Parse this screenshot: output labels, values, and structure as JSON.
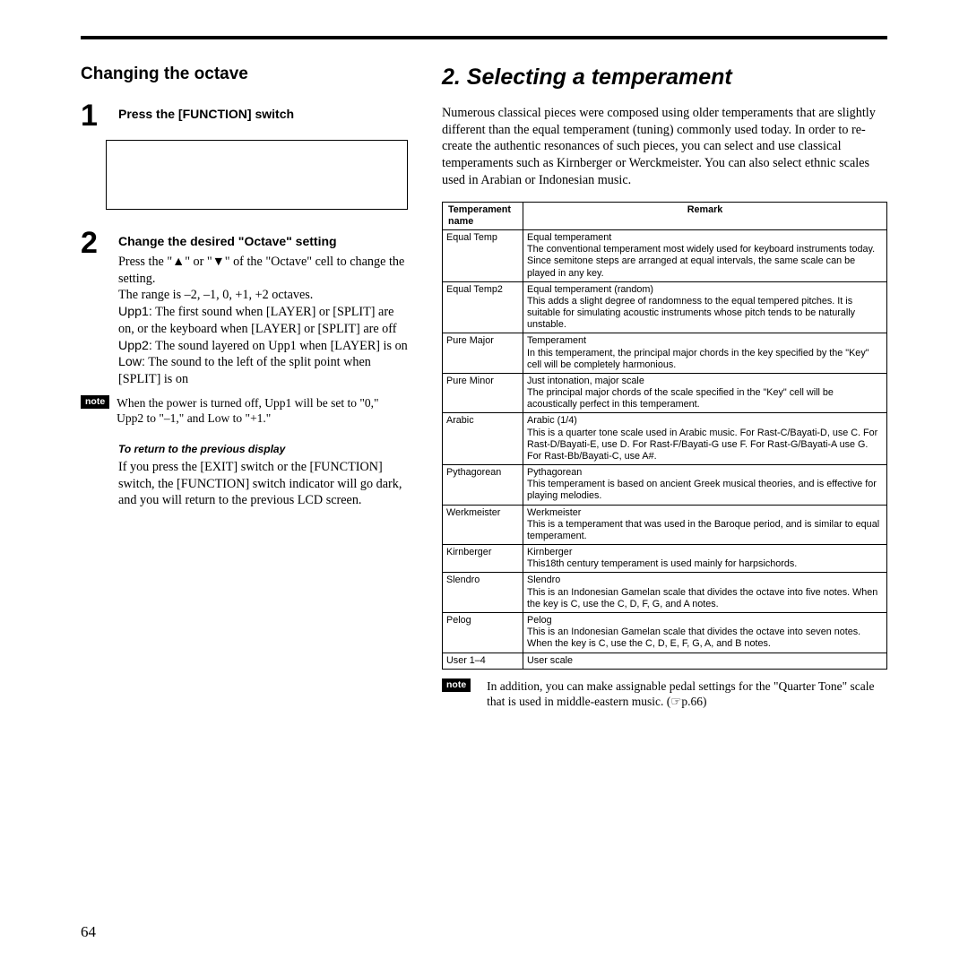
{
  "pageNumber": "64",
  "left": {
    "heading": "Changing the octave",
    "step1": {
      "num": "1",
      "title": "Press the [FUNCTION] switch"
    },
    "step2": {
      "num": "2",
      "title": "Change the desired \"Octave\" setting",
      "body1": "Press the \"▲\" or \"▼\" of the \"Octave\" cell to change the setting.",
      "body2": "The range is –2, –1, 0, +1, +2 octaves.",
      "body3a": "Upp1:",
      "body3b": " The first sound when [LAYER] or [SPLIT] are on, or the keyboard when [LAYER] or [SPLIT] are off",
      "body4a": "Upp2:",
      "body4b": " The sound layered on Upp1 when [LAYER] is on",
      "body5a": "Low:",
      "body5b": " The sound to the left of the split point when [SPLIT] is on"
    },
    "note1": "When the power is turned off, Upp1 will be set to \"0,\" Upp2 to \"–1,\" and Low to \"+1.\"",
    "returnHeading": "To return to the previous display",
    "returnBody": "If you press the [EXIT] switch or the [FUNCTION] switch, the [FUNCTION] switch indicator will go dark, and you will return to the previous LCD screen."
  },
  "right": {
    "heading": "2. Selecting a temperament",
    "intro": "Numerous classical pieces were composed using older temperaments that are slightly different than the equal temperament (tuning) commonly used today. In order to re-create the authentic resonances of such pieces, you can select and use classical temperaments such as Kirnberger or Werckmeister. You can also select ethnic scales used in Arabian or Indonesian music.",
    "tableHeaders": {
      "name": "Temperament name",
      "remark": "Remark"
    },
    "rows": [
      {
        "name": "Equal Temp",
        "title": "Equal temperament",
        "desc": "The conventional temperament most widely used for keyboard instruments today. Since semitone steps are arranged at equal intervals, the same scale can be played in any key."
      },
      {
        "name": "Equal Temp2",
        "title": "Equal temperament (random)",
        "desc": "This adds a slight degree of randomness to the equal tempered pitches. It is suitable for simulating acoustic instruments whose pitch tends to be naturally unstable."
      },
      {
        "name": "Pure Major",
        "title": "Temperament",
        "desc": "In this temperament, the principal major chords in the key specified by the \"Key\" cell will be completely harmonious."
      },
      {
        "name": "Pure Minor",
        "title": "Just intonation, major scale",
        "desc": "The principal major chords of the scale specified in the \"Key\" cell will be acoustically perfect in this temperament."
      },
      {
        "name": "Arabic",
        "title": "Arabic (1/4)",
        "desc": "This is a quarter tone scale used in Arabic music. For Rast-C/Bayati-D, use C. For Rast-D/Bayati-E, use D. For Rast-F/Bayati-G use F. For Rast-G/Bayati-A use G. For Rast-Bb/Bayati-C, use A#."
      },
      {
        "name": "Pythagorean",
        "title": "Pythagorean",
        "desc": "This temperament is based on ancient Greek musical theories, and is effective for playing melodies."
      },
      {
        "name": "Werkmeister",
        "title": "Werkmeister",
        "desc": "This is a temperament that was used in the Baroque period, and is similar to equal temperament."
      },
      {
        "name": "Kirnberger",
        "title": "Kirnberger",
        "desc": "This18th century temperament is used mainly for harpsichords."
      },
      {
        "name": "Slendro",
        "title": "Slendro",
        "desc": "This is an Indonesian Gamelan scale that divides the octave into five notes. When the key is C, use the C, D, F, G, and A notes."
      },
      {
        "name": "Pelog",
        "title": "Pelog",
        "desc": "This is an Indonesian Gamelan scale that divides the octave into seven notes. When the key is C, use the C, D, E, F, G, A, and B notes."
      },
      {
        "name": "User 1–4",
        "title": "User scale",
        "desc": ""
      }
    ],
    "note": "In addition, you can make assignable pedal settings for the \"Quarter Tone\" scale that is used in middle-eastern music. (☞p.66)"
  },
  "noteLabel": "note"
}
